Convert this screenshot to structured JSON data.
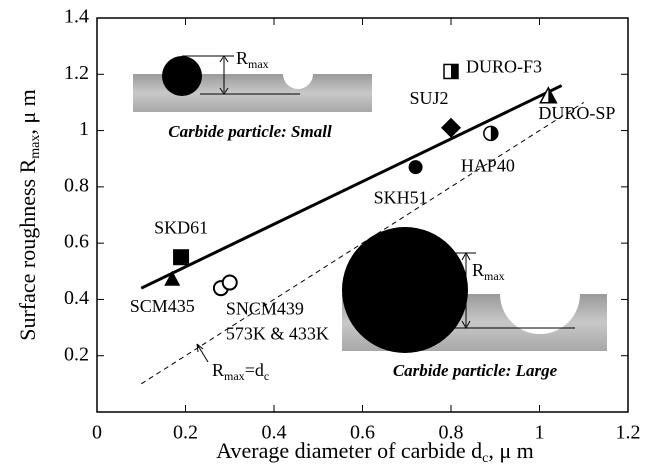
{
  "chart_data": {
    "type": "scatter",
    "xlabel": [
      "Average diameter of carbide  d",
      "c",
      ",  μ m"
    ],
    "ylabel": [
      "Surface roughness  R",
      "max",
      ",  μ m"
    ],
    "xlim": [
      0,
      1.2
    ],
    "ylim": [
      0,
      1.4
    ],
    "xticks": [
      0,
      0.2,
      0.4,
      0.6,
      0.8,
      1,
      1.2
    ],
    "yticks": [
      0.2,
      0.4,
      0.6,
      0.8,
      1,
      1.2,
      1.4
    ],
    "color": "#000000",
    "series": [
      {
        "name": "SCM435",
        "marker": "triangle",
        "x": [
          0.17
        ],
        "values": [
          0.47
        ]
      },
      {
        "name": "SKD61",
        "marker": "square",
        "x": [
          0.19
        ],
        "values": [
          0.55
        ]
      },
      {
        "name": "SNCM439",
        "marker": "open-circle",
        "x": [
          0.28,
          0.3
        ],
        "values": [
          0.44,
          0.46
        ],
        "note": "573K & 433K"
      },
      {
        "name": "SKH51",
        "marker": "circle",
        "x": [
          0.72
        ],
        "values": [
          0.87
        ]
      },
      {
        "name": "SUJ2",
        "marker": "diamond",
        "x": [
          0.8
        ],
        "values": [
          1.01
        ]
      },
      {
        "name": "HAP40",
        "marker": "half-circle",
        "x": [
          0.89
        ],
        "values": [
          0.99
        ]
      },
      {
        "name": "DURO-F3",
        "marker": "half-square",
        "x": [
          0.8
        ],
        "values": [
          1.21
        ]
      },
      {
        "name": "DURO-SP",
        "marker": "half-triangle",
        "x": [
          1.02
        ],
        "values": [
          1.12
        ]
      }
    ],
    "fit_line": {
      "x": [
        0.1,
        1.05
      ],
      "values": [
        0.44,
        1.16
      ]
    },
    "reference_line": {
      "x": [
        0.1,
        1.1
      ],
      "values": [
        0.1,
        1.1
      ],
      "label": [
        "R",
        "max",
        "=d",
        "c"
      ]
    },
    "insets": [
      {
        "label": "Carbide particle: Small",
        "rmax": [
          "R",
          "max"
        ]
      },
      {
        "label": "Carbide particle: Large",
        "rmax": [
          "R",
          "max"
        ]
      }
    ]
  }
}
